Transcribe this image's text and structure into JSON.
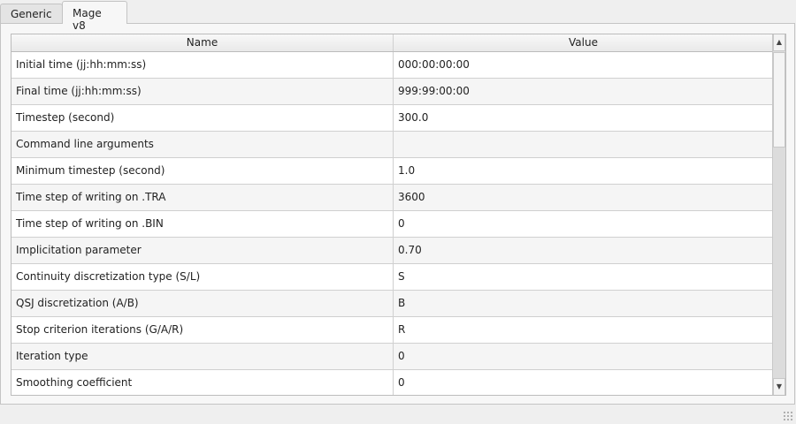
{
  "tabs": [
    {
      "label": "Generic",
      "active": false
    },
    {
      "label": "Mage v8",
      "active": true
    }
  ],
  "table": {
    "headers": [
      "Name",
      "Value"
    ],
    "rows": [
      [
        "Initial time (jj:hh:mm:ss)",
        "000:00:00:00"
      ],
      [
        "Final time (jj:hh:mm:ss)",
        "999:99:00:00"
      ],
      [
        "Timestep (second)",
        "300.0"
      ],
      [
        "Command line arguments",
        ""
      ],
      [
        "Minimum timestep (second)",
        "1.0"
      ],
      [
        "Time step of writing on .TRA",
        "3600"
      ],
      [
        "Time step of writing on .BIN",
        "0"
      ],
      [
        "Implicitation parameter",
        "0.70"
      ],
      [
        "Continuity discretization type (S/L)",
        "S"
      ],
      [
        "QSJ discretization (A/B)",
        "B"
      ],
      [
        "Stop criterion iterations (G/A/R)",
        "R"
      ],
      [
        "Iteration type",
        "0"
      ],
      [
        "Smoothing coefficient",
        "0"
      ]
    ]
  },
  "scrollbar": {
    "up_icon": "▲",
    "down_icon": "▼"
  }
}
